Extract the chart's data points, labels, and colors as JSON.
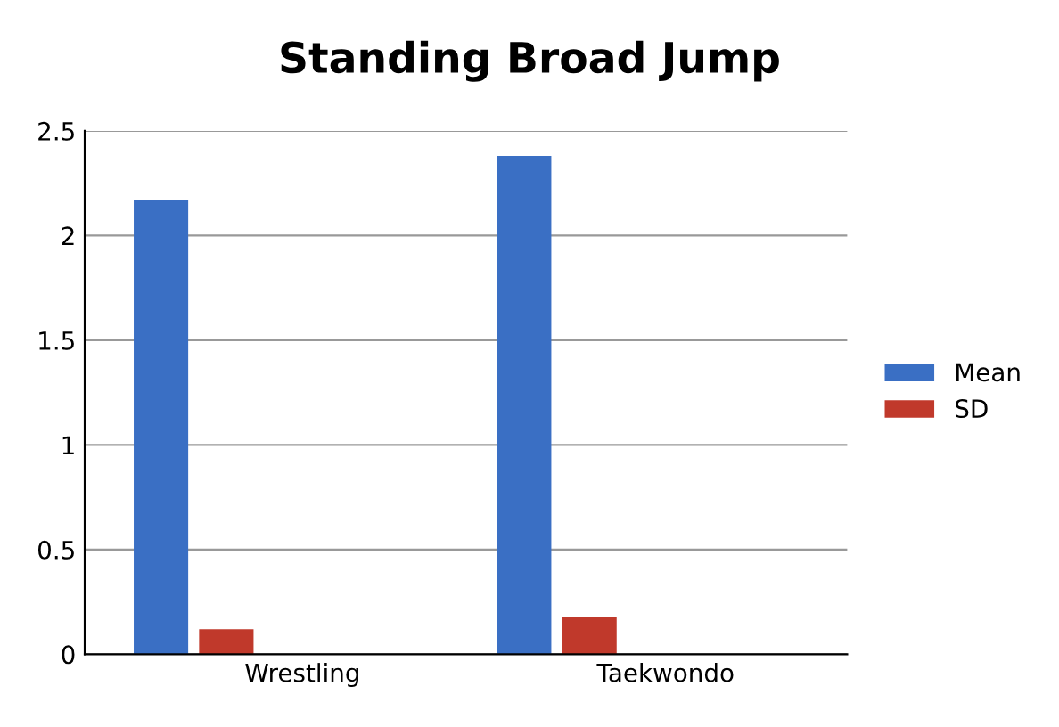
{
  "chart_data": {
    "type": "bar",
    "title": "Standing Broad Jump",
    "categories": [
      "Wrestling",
      "Taekwondo"
    ],
    "series": [
      {
        "name": "Mean",
        "color": "#3a6fc4",
        "values": [
          2.17,
          2.38
        ]
      },
      {
        "name": "SD",
        "color": "#c0392b",
        "values": [
          0.12,
          0.18
        ]
      }
    ],
    "ylim": [
      0,
      2.5
    ],
    "yticks": [
      0,
      0.5,
      1,
      1.5,
      2,
      2.5
    ],
    "grid": "y",
    "legend": "right"
  }
}
